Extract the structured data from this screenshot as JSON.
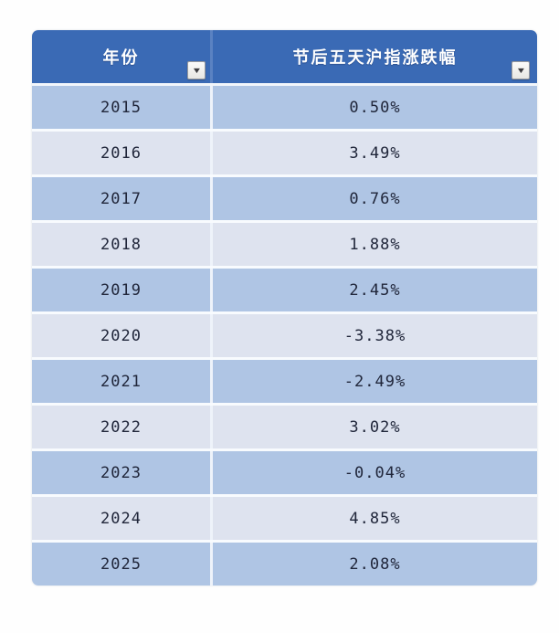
{
  "colors": {
    "header_bg": "#3a6ab5",
    "header_text": "#ffffff",
    "row_dark": "#afc5e4",
    "row_light": "#dee3ef",
    "separator": "#f8fbfe",
    "cell_text": "#20263a",
    "filter_button_bg": "#efefec",
    "filter_button_border": "#999a9c",
    "filter_arrow": "#3c3c40"
  },
  "table": {
    "columns": [
      {
        "label": "年份",
        "filter_icon": "▼"
      },
      {
        "label": "节后五天沪指涨跌幅",
        "filter_icon": "▼"
      }
    ],
    "rows": [
      {
        "year": "2015",
        "value": "0.50%"
      },
      {
        "year": "2016",
        "value": "3.49%"
      },
      {
        "year": "2017",
        "value": "0.76%"
      },
      {
        "year": "2018",
        "value": "1.88%"
      },
      {
        "year": "2019",
        "value": "2.45%"
      },
      {
        "year": "2020",
        "value": "-3.38%"
      },
      {
        "year": "2021",
        "value": "-2.49%"
      },
      {
        "year": "2022",
        "value": "3.02%"
      },
      {
        "year": "2023",
        "value": "-0.04%"
      },
      {
        "year": "2024",
        "value": "4.85%"
      },
      {
        "year": "2025",
        "value": "2.08%"
      }
    ]
  },
  "chart_data": {
    "type": "table",
    "title": "节后五天沪指涨跌幅",
    "columns": [
      "年份",
      "节后五天沪指涨跌幅"
    ],
    "categories": [
      "2015",
      "2016",
      "2017",
      "2018",
      "2019",
      "2020",
      "2021",
      "2022",
      "2023",
      "2024",
      "2025"
    ],
    "values_percent": [
      0.5,
      3.49,
      0.76,
      1.88,
      2.45,
      -3.38,
      -2.49,
      3.02,
      -0.04,
      4.85,
      2.08
    ]
  }
}
